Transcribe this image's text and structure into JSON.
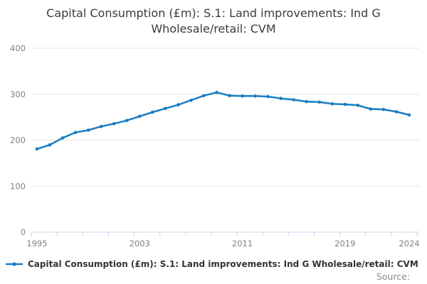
{
  "colors": {
    "series": "#1a7dc3",
    "grid": "#e6e6e6",
    "axis": "#ccd6eb",
    "tick_label": "#828282",
    "title_text": "#3b3b3b",
    "legend_text": "#333333",
    "source_text": "#8a8a8a"
  },
  "source": {
    "label": "Source:"
  },
  "chart_data": {
    "type": "line",
    "title": "Capital Consumption (£m): S.1: Land improvements: Ind G Wholesale/retail: CVM",
    "xlabel": "",
    "ylabel": "",
    "x": [
      1995,
      1996,
      1997,
      1998,
      1999,
      2000,
      2001,
      2002,
      2003,
      2004,
      2005,
      2006,
      2007,
      2008,
      2009,
      2010,
      2011,
      2012,
      2013,
      2014,
      2015,
      2016,
      2017,
      2018,
      2019,
      2020,
      2021,
      2022,
      2023,
      2024
    ],
    "series": [
      {
        "name": "Capital Consumption (£m): S.1: Land improvements: Ind G Wholesale/retail: CVM",
        "values": [
          181,
          190,
          205,
          217,
          222,
          230,
          236,
          243,
          252,
          261,
          269,
          277,
          287,
          297,
          304,
          297,
          296,
          296,
          295,
          291,
          288,
          284,
          283,
          279,
          278,
          276,
          268,
          267,
          262,
          255
        ]
      }
    ],
    "ylim": [
      0,
      400
    ],
    "yticks": [
      0,
      100,
      200,
      300,
      400
    ],
    "x_axis_labels": [
      1995,
      2003,
      2011,
      2019,
      2024
    ],
    "x_tick_interval_years": 2,
    "xlim_years": [
      1994.5,
      2024.8
    ],
    "grid": "horizontal-only",
    "legend_position": "bottom-left",
    "marker": "circle"
  }
}
